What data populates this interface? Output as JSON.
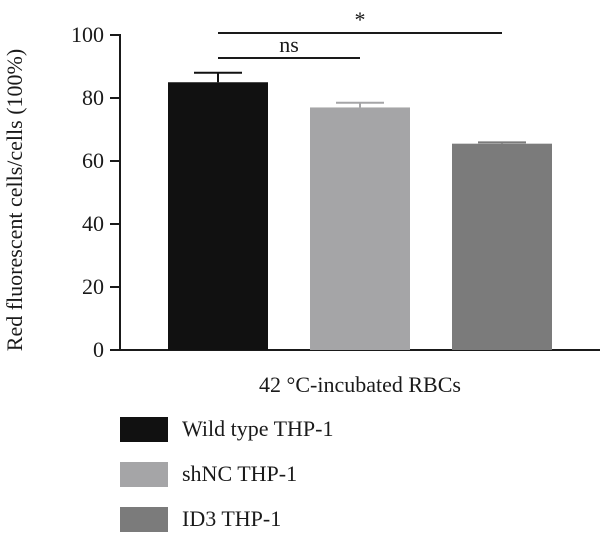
{
  "chart_data": {
    "type": "bar",
    "ylabel": "Red fluorescent cells/cells (100%)",
    "xlabel": "42 °C-incubated RBCs",
    "ylim": [
      0,
      100
    ],
    "yticks": [
      0,
      20,
      40,
      60,
      80,
      100
    ],
    "grid": false,
    "legend_position": "bottom",
    "series": [
      {
        "name": "Wild type THP-1",
        "value": 85,
        "error": 3,
        "color": "#111111"
      },
      {
        "name": "shNC THP-1",
        "value": 77,
        "error": 1.5,
        "color": "#a5a5a7"
      },
      {
        "name": "ID3 THP-1",
        "value": 65.5,
        "error": 0.4,
        "color": "#7b7b7b"
      }
    ],
    "annotations": [
      {
        "text": "ns",
        "from": "Wild type THP-1",
        "to": "shNC THP-1"
      },
      {
        "text": "*",
        "from": "Wild type THP-1",
        "to": "ID3 THP-1"
      }
    ]
  }
}
